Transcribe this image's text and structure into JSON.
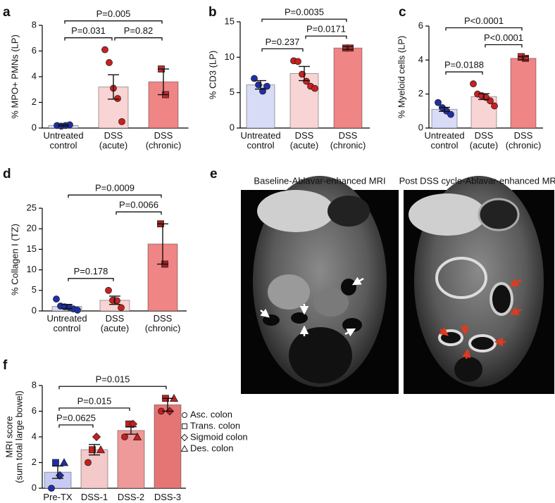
{
  "chart_data": [
    {
      "type": "bar",
      "label": "a",
      "ylabel": "% MPO+ PMNs (LP)",
      "categories": [
        "Untreated control",
        "DSS (acute)",
        "DSS (chronic)"
      ],
      "values": [
        0.2,
        3.2,
        3.6
      ],
      "errors": [
        0.05,
        0.95,
        1.0
      ],
      "colors": [
        "#d9dcf7",
        "#f9d4d4",
        "#ef8585"
      ],
      "points": [
        [
          0.2,
          0.15,
          0.2,
          0.25
        ],
        [
          6.1,
          5.1,
          3.1,
          2.3,
          0.5
        ],
        [
          4.6,
          2.6
        ]
      ],
      "point_colors": [
        "#1f2fa8",
        "#cc1f1f",
        "#c42a2a"
      ],
      "point_markers": [
        "circle",
        "circle",
        "square"
      ],
      "ylim": [
        0,
        8
      ],
      "yticks": [
        0,
        2,
        4,
        6,
        8
      ],
      "brackets": [
        {
          "pair": [
            0,
            1
          ],
          "label": "P=0.031"
        },
        {
          "pair": [
            1,
            2
          ],
          "label": "P=0.82"
        },
        {
          "pair": [
            0,
            2
          ],
          "label": "P=0.005"
        }
      ]
    },
    {
      "type": "bar",
      "label": "b",
      "ylabel": "% CD3 (LP)",
      "categories": [
        "Untreated control",
        "DSS (acute)",
        "DSS (chronic)"
      ],
      "values": [
        6.1,
        7.7,
        11.3
      ],
      "errors": [
        0.6,
        1.0,
        0.2
      ],
      "colors": [
        "#d9dcf7",
        "#f9d4d4",
        "#ef8585"
      ],
      "points": [
        [
          7.0,
          6.1,
          5.2,
          5.9
        ],
        [
          9.5,
          9.4,
          7.6,
          6.6,
          5.9,
          5.6
        ],
        [
          11.3,
          11.3
        ]
      ],
      "point_colors": [
        "#1f2fa8",
        "#cc1f1f",
        "#c42a2a"
      ],
      "point_markers": [
        "circle",
        "circle",
        "square"
      ],
      "ylim": [
        0,
        15
      ],
      "yticks": [
        0,
        5,
        10,
        15
      ],
      "brackets": [
        {
          "pair": [
            0,
            1
          ],
          "label": "P=0.237"
        },
        {
          "pair": [
            1,
            2
          ],
          "label": "P=0.0171"
        },
        {
          "pair": [
            0,
            2
          ],
          "label": "P=0.0035"
        }
      ]
    },
    {
      "type": "bar",
      "label": "c",
      "ylabel": "% Myeloid cells (LP)",
      "categories": [
        "Untreated control",
        "DSS (acute)",
        "DSS (chronic)"
      ],
      "values": [
        1.1,
        1.85,
        4.1
      ],
      "errors": [
        0.12,
        0.17,
        0.1
      ],
      "colors": [
        "#d9dcf7",
        "#f9d4d4",
        "#ef8585"
      ],
      "points": [
        [
          1.5,
          1.2,
          1.0,
          0.8
        ],
        [
          2.6,
          2.0,
          1.9,
          1.8,
          1.6,
          1.3
        ],
        [
          4.2,
          4.1
        ]
      ],
      "point_colors": [
        "#1f2fa8",
        "#cc1f1f",
        "#c42a2a"
      ],
      "point_markers": [
        "circle",
        "circle",
        "square"
      ],
      "ylim": [
        0,
        6
      ],
      "yticks": [
        0,
        2,
        4,
        6
      ],
      "brackets": [
        {
          "pair": [
            0,
            1
          ],
          "label": "P=0.0188"
        },
        {
          "pair": [
            1,
            2
          ],
          "label": "P<0.0001"
        },
        {
          "pair": [
            0,
            2
          ],
          "label": "P<0.0001"
        }
      ]
    },
    {
      "type": "bar",
      "label": "d",
      "ylabel": "% Collagen I (TZ)",
      "categories": [
        "Untreated control",
        "DSS (acute)",
        "DSS (chronic)"
      ],
      "values": [
        1.1,
        2.6,
        16.3
      ],
      "errors": [
        0.5,
        1.0,
        4.9
      ],
      "colors": [
        "#d9dcf7",
        "#f9d4d4",
        "#ef8585"
      ],
      "points": [
        [
          2.9,
          1.2,
          1.0,
          0.9,
          0.5,
          0.2
        ],
        [
          5.0,
          2.6,
          2.5,
          0.8
        ],
        [
          21.2,
          11.4
        ]
      ],
      "point_colors": [
        "#1f2fa8",
        "#cc1f1f",
        "#a82020"
      ],
      "point_markers": [
        "circle",
        "circle",
        "square"
      ],
      "ylim": [
        0,
        25
      ],
      "yticks": [
        0,
        5,
        10,
        15,
        20,
        25
      ],
      "brackets": [
        {
          "pair": [
            0,
            1
          ],
          "label": "P=0.178"
        },
        {
          "pair": [
            1,
            2
          ],
          "label": "P=0.0066"
        },
        {
          "pair": [
            0,
            2
          ],
          "label": "P=0.0009"
        }
      ]
    },
    {
      "type": "bar",
      "label": "f",
      "ylabel": [
        "MRI score",
        "(sum total large bowel)"
      ],
      "categories": [
        "Pre-TX",
        "DSS-1",
        "DSS-2",
        "DSS-3"
      ],
      "values": [
        1.25,
        3.0,
        4.5,
        6.5
      ],
      "errors": [
        0.48,
        0.41,
        0.29,
        0.5
      ],
      "colors": [
        "#c7cbf3",
        "#f3c9c9",
        "#ee9a9a",
        "#e57575"
      ],
      "point_colors": [
        "#1f2fa8",
        "#c81e1e",
        "#c81e1e",
        "#c81e1e"
      ],
      "series": [
        {
          "name": "Asc. colon",
          "marker": "circle",
          "values": [
            0,
            2,
            4,
            6
          ]
        },
        {
          "name": "Trans. colon",
          "marker": "square",
          "values": [
            2,
            3,
            5,
            7
          ]
        },
        {
          "name": "Sigmoid colon",
          "marker": "diamond",
          "values": [
            1,
            4,
            5,
            6
          ]
        },
        {
          "name": "Des. colon",
          "marker": "triangle",
          "values": [
            2,
            3,
            4,
            7
          ]
        }
      ],
      "ylim": [
        0,
        8
      ],
      "yticks": [
        0,
        2,
        4,
        6,
        8
      ],
      "brackets": [
        {
          "pair": [
            0,
            1
          ],
          "label": "P=0.0625"
        },
        {
          "pair": [
            0,
            2
          ],
          "label": "P=0.015"
        },
        {
          "pair": [
            0,
            3
          ],
          "label": "P=0.015"
        }
      ]
    }
  ],
  "panel_e": {
    "label": "e",
    "images": [
      "Baseline-Ablavar-enhanced MRI",
      "Post DSS cycle-Ablavar-enhanced MRI"
    ]
  }
}
